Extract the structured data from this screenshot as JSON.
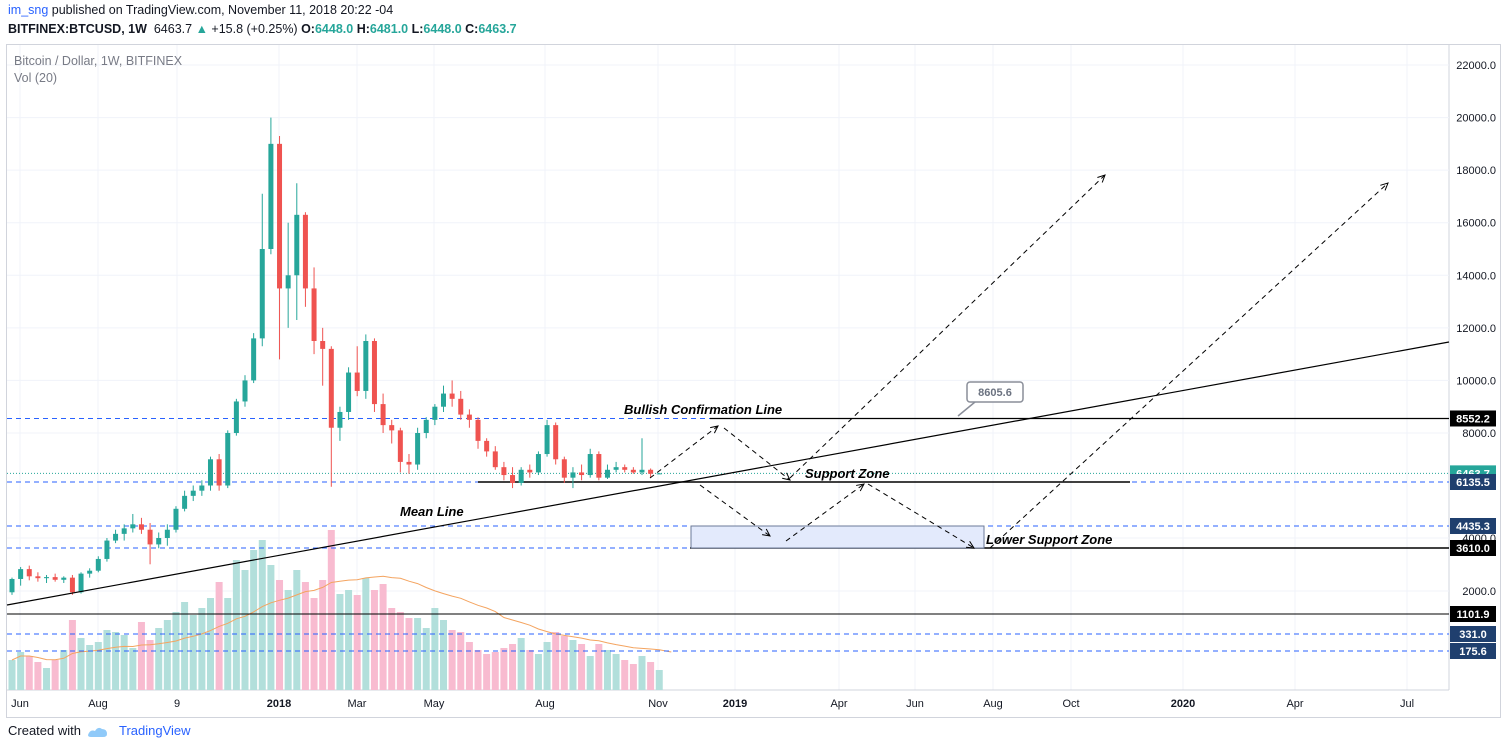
{
  "header": {
    "author": "im_sng",
    "published_text": "published on TradingView.com, November 11, 2018 20:22 -04",
    "symbol": "BITFINEX:BTCUSD, 1W",
    "price": "6463.7",
    "change_arrow": "▲",
    "change": "+15.8 (+0.25%)",
    "o_label": "O:",
    "o_value": "6448.0",
    "h_label": "H:",
    "h_value": "6481.0",
    "l_label": "L:",
    "l_value": "6448.0",
    "c_label": "C:",
    "c_value": "6463.7"
  },
  "legend": {
    "title": "Bitcoin / Dollar, 1W, BITFINEX",
    "volume": "Vol (20)"
  },
  "footer": {
    "created_with": "Created with",
    "brand": "TradingView"
  },
  "colors": {
    "up": "#26a69a",
    "down": "#ef5350",
    "vol_up": "#b2dfdb",
    "vol_down": "#f8bbd0",
    "vol_ma": "#f4a460",
    "level_line": "#2962ff",
    "grid": "#f0f3fa",
    "axis_text": "#131722",
    "zone_fill": "#e3eafc",
    "zone_stroke": "#6b7a99"
  },
  "chart_data": {
    "type": "candlestick",
    "title": "Bitcoin / Dollar, 1W, BITFINEX",
    "y_ticks": [
      "22000.0",
      "20000.0",
      "18000.0",
      "16000.0",
      "14000.0",
      "12000.0",
      "10000.0",
      "8000.0",
      "4000.0",
      "2000.0"
    ],
    "ylim": [
      0,
      22500
    ],
    "y_scale": "mixed (linear above 8552.2, compressed below)",
    "x_ticks": [
      "Jun",
      "Aug",
      "9",
      "2018",
      "Mar",
      "May",
      "Aug",
      "Nov",
      "2019",
      "Apr",
      "Jun",
      "Aug",
      "Oct",
      "2020",
      "Apr",
      "Jul"
    ],
    "grid": true,
    "price_labels": [
      {
        "value": "8552.2",
        "style": "black"
      },
      {
        "value": "6463.7",
        "style": "teal"
      },
      {
        "value": "6135.5",
        "style": "navy"
      },
      {
        "value": "4435.3",
        "style": "navy"
      },
      {
        "value": "3610.0",
        "style": "black"
      },
      {
        "value": "1101.9",
        "style": "black"
      },
      {
        "value": "331.0",
        "style": "navy"
      },
      {
        "value": "175.6",
        "style": "navy"
      }
    ],
    "annotations": [
      {
        "text": "Bullish Confirmation Line"
      },
      {
        "text": "Support Zone"
      },
      {
        "text": "Mean Line"
      },
      {
        "text": "Lower Support Zone"
      },
      {
        "text": "8605.6",
        "type": "callout"
      }
    ],
    "candles": [
      {
        "o": 1950,
        "h": 2500,
        "l": 1850,
        "c": 2450
      },
      {
        "o": 2450,
        "h": 2900,
        "l": 2200,
        "c": 2820
      },
      {
        "o": 2820,
        "h": 2950,
        "l": 2400,
        "c": 2550
      },
      {
        "o": 2550,
        "h": 2700,
        "l": 2350,
        "c": 2480
      },
      {
        "o": 2480,
        "h": 2600,
        "l": 2300,
        "c": 2520
      },
      {
        "o": 2520,
        "h": 2650,
        "l": 2350,
        "c": 2420
      },
      {
        "o": 2420,
        "h": 2550,
        "l": 2300,
        "c": 2500
      },
      {
        "o": 2500,
        "h": 2600,
        "l": 1850,
        "c": 1950
      },
      {
        "o": 1950,
        "h": 2700,
        "l": 1900,
        "c": 2650
      },
      {
        "o": 2650,
        "h": 2850,
        "l": 2500,
        "c": 2760
      },
      {
        "o": 2760,
        "h": 3300,
        "l": 2700,
        "c": 3200
      },
      {
        "o": 3200,
        "h": 4000,
        "l": 3100,
        "c": 3900
      },
      {
        "o": 3900,
        "h": 4300,
        "l": 3800,
        "c": 4150
      },
      {
        "o": 4150,
        "h": 4500,
        "l": 3900,
        "c": 4350
      },
      {
        "o": 4350,
        "h": 4900,
        "l": 4200,
        "c": 4500
      },
      {
        "o": 4500,
        "h": 4750,
        "l": 4150,
        "c": 4300
      },
      {
        "o": 4300,
        "h": 4550,
        "l": 3000,
        "c": 3750
      },
      {
        "o": 3750,
        "h": 4200,
        "l": 3600,
        "c": 4000
      },
      {
        "o": 4000,
        "h": 4500,
        "l": 3700,
        "c": 4300
      },
      {
        "o": 4300,
        "h": 5200,
        "l": 4200,
        "c": 5100
      },
      {
        "o": 5100,
        "h": 5800,
        "l": 5000,
        "c": 5600
      },
      {
        "o": 5600,
        "h": 6000,
        "l": 5400,
        "c": 5800
      },
      {
        "o": 5800,
        "h": 6200,
        "l": 5600,
        "c": 6000
      },
      {
        "o": 6000,
        "h": 7100,
        "l": 5800,
        "c": 7000
      },
      {
        "o": 7000,
        "h": 7200,
        "l": 5800,
        "c": 6000
      },
      {
        "o": 6000,
        "h": 8100,
        "l": 5900,
        "c": 8000
      },
      {
        "o": 8000,
        "h": 9300,
        "l": 7900,
        "c": 9200
      },
      {
        "o": 9200,
        "h": 10200,
        "l": 9000,
        "c": 10000
      },
      {
        "o": 10000,
        "h": 11800,
        "l": 9900,
        "c": 11600
      },
      {
        "o": 11600,
        "h": 17100,
        "l": 11300,
        "c": 15000
      },
      {
        "o": 15000,
        "h": 20000,
        "l": 14800,
        "c": 19000
      },
      {
        "o": 19000,
        "h": 19300,
        "l": 10800,
        "c": 13500
      },
      {
        "o": 13500,
        "h": 16000,
        "l": 12000,
        "c": 14000
      },
      {
        "o": 14000,
        "h": 17500,
        "l": 12300,
        "c": 16300
      },
      {
        "o": 16300,
        "h": 16400,
        "l": 12800,
        "c": 13500
      },
      {
        "o": 13500,
        "h": 14300,
        "l": 11000,
        "c": 11500
      },
      {
        "o": 11500,
        "h": 12000,
        "l": 9800,
        "c": 11200
      },
      {
        "o": 11200,
        "h": 11300,
        "l": 5950,
        "c": 8200
      },
      {
        "o": 8200,
        "h": 9000,
        "l": 7700,
        "c": 8800
      },
      {
        "o": 8800,
        "h": 10500,
        "l": 8500,
        "c": 10300
      },
      {
        "o": 10300,
        "h": 11300,
        "l": 9400,
        "c": 9600
      },
      {
        "o": 9600,
        "h": 11750,
        "l": 9300,
        "c": 11500
      },
      {
        "o": 11500,
        "h": 11600,
        "l": 8800,
        "c": 9100
      },
      {
        "o": 9100,
        "h": 9500,
        "l": 8000,
        "c": 8300
      },
      {
        "o": 8300,
        "h": 8500,
        "l": 7600,
        "c": 8100
      },
      {
        "o": 8100,
        "h": 8200,
        "l": 6500,
        "c": 6900
      },
      {
        "o": 6900,
        "h": 7200,
        "l": 6450,
        "c": 6800
      },
      {
        "o": 6800,
        "h": 8200,
        "l": 6600,
        "c": 8000
      },
      {
        "o": 8000,
        "h": 8600,
        "l": 7800,
        "c": 8500
      },
      {
        "o": 8500,
        "h": 9100,
        "l": 8300,
        "c": 9000
      },
      {
        "o": 9000,
        "h": 9800,
        "l": 8800,
        "c": 9500
      },
      {
        "o": 9500,
        "h": 10000,
        "l": 9000,
        "c": 9300
      },
      {
        "o": 9300,
        "h": 9600,
        "l": 8500,
        "c": 8700
      },
      {
        "o": 8700,
        "h": 8900,
        "l": 8200,
        "c": 8500
      },
      {
        "o": 8500,
        "h": 8600,
        "l": 7400,
        "c": 7700
      },
      {
        "o": 7700,
        "h": 7800,
        "l": 7100,
        "c": 7300
      },
      {
        "o": 7300,
        "h": 7500,
        "l": 6600,
        "c": 6700
      },
      {
        "o": 6700,
        "h": 6900,
        "l": 6200,
        "c": 6400
      },
      {
        "o": 6400,
        "h": 6700,
        "l": 5900,
        "c": 6100
      },
      {
        "o": 6100,
        "h": 6700,
        "l": 6000,
        "c": 6600
      },
      {
        "o": 6600,
        "h": 6800,
        "l": 6300,
        "c": 6500
      },
      {
        "o": 6500,
        "h": 7300,
        "l": 6400,
        "c": 7200
      },
      {
        "o": 7200,
        "h": 8500,
        "l": 7100,
        "c": 8300
      },
      {
        "o": 8300,
        "h": 8400,
        "l": 6800,
        "c": 7000
      },
      {
        "o": 7000,
        "h": 7100,
        "l": 6100,
        "c": 6300
      },
      {
        "o": 6300,
        "h": 6700,
        "l": 5900,
        "c": 6500
      },
      {
        "o": 6500,
        "h": 6800,
        "l": 6200,
        "c": 6400
      },
      {
        "o": 6400,
        "h": 7400,
        "l": 6300,
        "c": 7200
      },
      {
        "o": 7200,
        "h": 7300,
        "l": 6200,
        "c": 6300
      },
      {
        "o": 6300,
        "h": 6800,
        "l": 6250,
        "c": 6600
      },
      {
        "o": 6600,
        "h": 6900,
        "l": 6500,
        "c": 6700
      },
      {
        "o": 6700,
        "h": 6800,
        "l": 6500,
        "c": 6600
      },
      {
        "o": 6600,
        "h": 6700,
        "l": 6450,
        "c": 6500
      },
      {
        "o": 6500,
        "h": 7800,
        "l": 6400,
        "c": 6600
      },
      {
        "o": 6600,
        "h": 6650,
        "l": 6300,
        "c": 6450
      },
      {
        "o": 6448,
        "h": 6481,
        "l": 6448,
        "c": 6463.7
      }
    ],
    "volume_ma_note": "orange moving average line over volume bars"
  }
}
